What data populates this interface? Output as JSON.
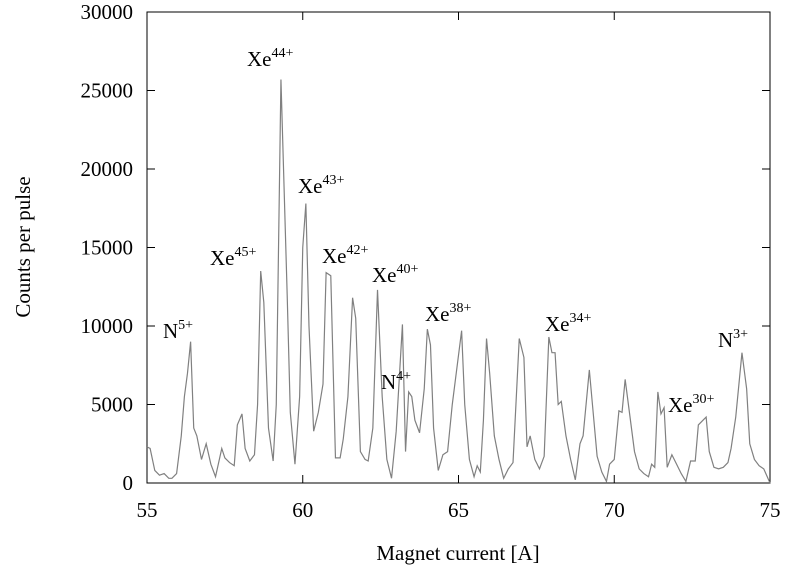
{
  "chart_data": {
    "type": "line",
    "x_label": "Magnet current [A]",
    "y_label": "Counts per pulse",
    "xlim": [
      55,
      75
    ],
    "xticks": [
      55,
      60,
      65,
      70,
      75
    ],
    "ylim": [
      0,
      30000
    ],
    "yticks": [
      0,
      5000,
      10000,
      15000,
      20000,
      25000,
      30000
    ],
    "color": "#808080",
    "x": [
      55.0,
      55.1,
      55.25,
      55.4,
      55.55,
      55.7,
      55.8,
      55.95,
      56.1,
      56.2,
      56.3,
      56.4,
      56.5,
      56.6,
      56.75,
      56.9,
      57.05,
      57.2,
      57.4,
      57.5,
      57.65,
      57.8,
      57.9,
      58.05,
      58.15,
      58.3,
      58.45,
      58.55,
      58.65,
      58.75,
      58.9,
      59.05,
      59.15,
      59.3,
      59.5,
      59.6,
      59.75,
      59.9,
      60.0,
      60.1,
      60.2,
      60.35,
      60.5,
      60.65,
      60.75,
      60.9,
      61.05,
      61.2,
      61.3,
      61.45,
      61.6,
      61.7,
      61.85,
      62.0,
      62.1,
      62.25,
      62.4,
      62.55,
      62.7,
      62.85,
      63.0,
      63.2,
      63.3,
      63.4,
      63.5,
      63.6,
      63.75,
      63.9,
      64.0,
      64.1,
      64.2,
      64.35,
      64.5,
      64.65,
      64.8,
      65.1,
      65.2,
      65.35,
      65.5,
      65.6,
      65.7,
      65.8,
      65.9,
      66.0,
      66.15,
      66.3,
      66.45,
      66.6,
      66.75,
      66.95,
      67.1,
      67.2,
      67.3,
      67.45,
      67.6,
      67.75,
      67.9,
      68.0,
      68.1,
      68.2,
      68.3,
      68.45,
      68.6,
      68.75,
      68.9,
      69.0,
      69.2,
      69.3,
      69.45,
      69.6,
      69.75,
      69.85,
      70.0,
      70.15,
      70.25,
      70.35,
      70.5,
      70.65,
      70.8,
      70.95,
      71.1,
      71.2,
      71.3,
      71.4,
      71.5,
      71.6,
      71.7,
      71.85,
      72.0,
      72.15,
      72.3,
      72.45,
      72.6,
      72.7,
      72.85,
      72.95,
      73.05,
      73.2,
      73.35,
      73.5,
      73.65,
      73.75,
      73.9,
      74.1,
      74.25,
      74.35,
      74.5,
      74.65,
      74.8,
      75.0
    ],
    "values": [
      2300,
      2200,
      800,
      500,
      600,
      300,
      300,
      600,
      3000,
      5500,
      7000,
      9000,
      3500,
      3000,
      1500,
      2500,
      1200,
      400,
      2200,
      1600,
      1300,
      1100,
      3700,
      4400,
      2200,
      1400,
      1800,
      5000,
      13500,
      11500,
      3500,
      1400,
      5000,
      25700,
      12000,
      4500,
      1200,
      5500,
      15000,
      17800,
      10000,
      3300,
      4500,
      6300,
      13400,
      13200,
      1600,
      1600,
      2800,
      5500,
      11800,
      10500,
      2000,
      1500,
      1400,
      3500,
      12300,
      5500,
      1500,
      300,
      3300,
      10100,
      2000,
      5800,
      5500,
      4000,
      3200,
      6000,
      9800,
      8800,
      3500,
      800,
      1800,
      2000,
      5000,
      9700,
      5000,
      1500,
      400,
      1100,
      700,
      4000,
      9200,
      7000,
      3000,
      1500,
      300,
      900,
      1300,
      9200,
      8000,
      2300,
      3000,
      1500,
      900,
      1700,
      9300,
      8300,
      8300,
      5000,
      5200,
      3000,
      1500,
      200,
      2500,
      3000,
      7200,
      5000,
      1700,
      700,
      100,
      1200,
      1500,
      4600,
      4500,
      6600,
      4300,
      2000,
      900,
      600,
      400,
      1200,
      1000,
      5800,
      4400,
      4800,
      1000,
      1800,
      1200,
      600,
      100,
      1400,
      1400,
      3700,
      4000,
      4200,
      2000,
      1000,
      900,
      1000,
      1300,
      2200,
      4200,
      8300,
      6000,
      2500,
      1500,
      1100,
      900,
      0
    ],
    "annotations": [
      {
        "base": "N",
        "sup": "5+"
      },
      {
        "base": "Xe",
        "sup": "44+"
      },
      {
        "base": "Xe",
        "sup": "43+"
      },
      {
        "base": "Xe",
        "sup": "45+"
      },
      {
        "base": "Xe",
        "sup": "42+"
      },
      {
        "base": "Xe",
        "sup": "40+"
      },
      {
        "base": "N",
        "sup": "4+"
      },
      {
        "base": "Xe",
        "sup": "38+"
      },
      {
        "base": "Xe",
        "sup": "34+"
      },
      {
        "base": "N",
        "sup": "3+"
      },
      {
        "base": "Xe",
        "sup": "30+"
      }
    ]
  }
}
